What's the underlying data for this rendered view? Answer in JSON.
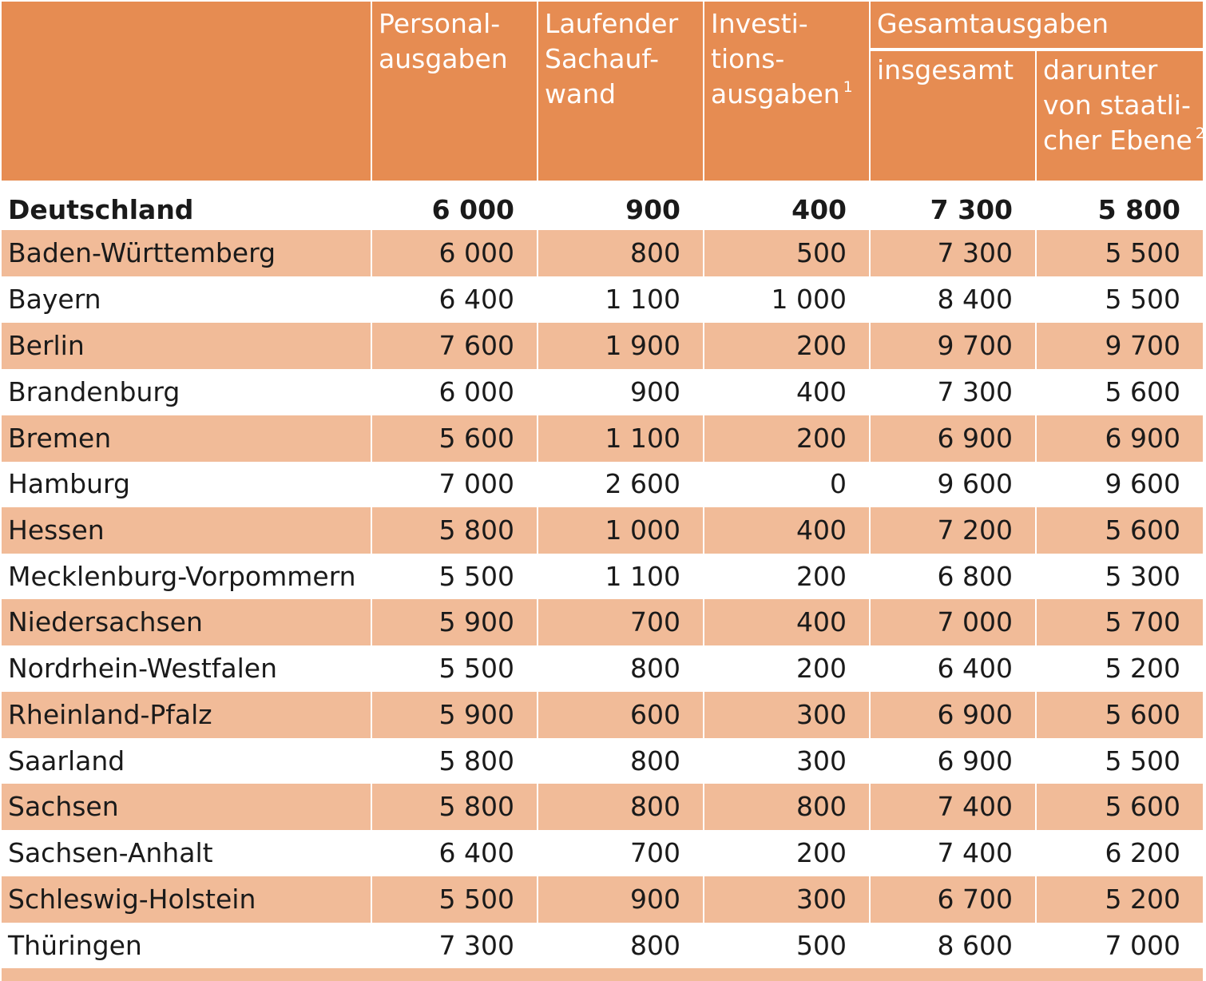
{
  "header": {
    "personal": [
      "Personal-",
      "ausgaben"
    ],
    "sachaufwand": [
      "Laufender",
      "Sachauf-",
      "wand"
    ],
    "investitions": [
      "Investi-",
      "tions-",
      "ausgaben"
    ],
    "investitions_fn": "1",
    "gesamt": "Gesamtausgaben",
    "insgesamt": "insgesamt",
    "darunter": [
      "darunter",
      "von staatli-",
      "cher Ebene"
    ],
    "darunter_fn": "2"
  },
  "rows": [
    {
      "name": "Deutschland",
      "v": [
        "6 000",
        "900",
        "400",
        "7 300",
        "5 800"
      ]
    },
    {
      "name": "Baden-Württemberg",
      "v": [
        "6 000",
        "800",
        "500",
        "7 300",
        "5 500"
      ]
    },
    {
      "name": "Bayern",
      "v": [
        "6 400",
        "1 100",
        "1 000",
        "8 400",
        "5 500"
      ]
    },
    {
      "name": "Berlin",
      "v": [
        "7 600",
        "1 900",
        "200",
        "9 700",
        "9 700"
      ]
    },
    {
      "name": "Brandenburg",
      "v": [
        "6 000",
        "900",
        "400",
        "7 300",
        "5 600"
      ]
    },
    {
      "name": "Bremen",
      "v": [
        "5 600",
        "1 100",
        "200",
        "6 900",
        "6 900"
      ]
    },
    {
      "name": "Hamburg",
      "v": [
        "7 000",
        "2 600",
        "0",
        "9 600",
        "9 600"
      ]
    },
    {
      "name": "Hessen",
      "v": [
        "5 800",
        "1 000",
        "400",
        "7 200",
        "5 600"
      ]
    },
    {
      "name": "Mecklenburg-Vorpommern",
      "v": [
        "5 500",
        "1 100",
        "200",
        "6 800",
        "5 300"
      ]
    },
    {
      "name": "Niedersachsen",
      "v": [
        "5 900",
        "700",
        "400",
        "7 000",
        "5 700"
      ]
    },
    {
      "name": "Nordrhein-Westfalen",
      "v": [
        "5 500",
        "800",
        "200",
        "6 400",
        "5 200"
      ]
    },
    {
      "name": "Rheinland-Pfalz",
      "v": [
        "5 900",
        "600",
        "300",
        "6 900",
        "5 600"
      ]
    },
    {
      "name": "Saarland",
      "v": [
        "5 800",
        "800",
        "300",
        "6 900",
        "5 500"
      ]
    },
    {
      "name": "Sachsen",
      "v": [
        "5 800",
        "800",
        "800",
        "7 400",
        "5 600"
      ]
    },
    {
      "name": "Sachsen-Anhalt",
      "v": [
        "6 400",
        "700",
        "200",
        "7 400",
        "6 200"
      ]
    },
    {
      "name": "Schleswig-Holstein",
      "v": [
        "5 500",
        "900",
        "300",
        "6 700",
        "5 200"
      ]
    },
    {
      "name": "Thüringen",
      "v": [
        "7 300",
        "800",
        "500",
        "8 600",
        "7 000"
      ]
    }
  ],
  "colors": {
    "header": "#e68c52",
    "stripe": "#f1bb98",
    "text": "#1a1a1a"
  }
}
